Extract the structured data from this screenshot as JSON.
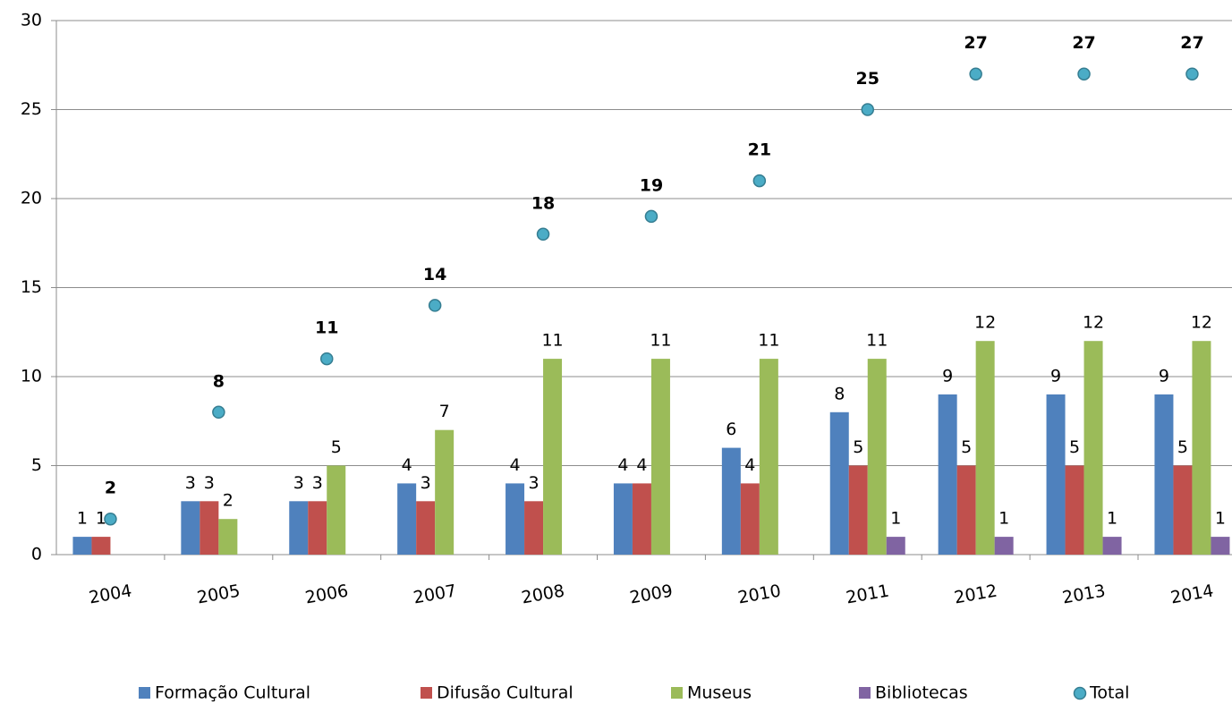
{
  "chart_data": {
    "type": "bar",
    "categories": [
      "2004",
      "2005",
      "2006",
      "2007",
      "2008",
      "2009",
      "2010",
      "2011",
      "2012",
      "2013",
      "2014"
    ],
    "series": [
      {
        "name": "Formação Cultural",
        "color": "#4f81bd",
        "values": [
          1,
          3,
          3,
          4,
          4,
          4,
          6,
          8,
          9,
          9,
          9
        ]
      },
      {
        "name": "Difusão Cultural",
        "color": "#c0504d",
        "values": [
          1,
          3,
          3,
          3,
          3,
          4,
          4,
          5,
          5,
          5,
          5
        ]
      },
      {
        "name": "Museus",
        "color": "#9bbb59",
        "values": [
          null,
          2,
          5,
          7,
          11,
          11,
          11,
          11,
          12,
          12,
          12
        ]
      },
      {
        "name": "Bibliotecas",
        "color": "#8064a2",
        "values": [
          null,
          null,
          null,
          null,
          null,
          null,
          null,
          1,
          1,
          1,
          1
        ]
      },
      {
        "name": "Total",
        "color": "#4bacc6",
        "type": "scatter",
        "values": [
          2,
          8,
          11,
          14,
          18,
          19,
          21,
          25,
          27,
          27,
          27
        ]
      }
    ],
    "ylim": [
      0,
      30
    ],
    "yticks": [
      0,
      5,
      10,
      15,
      20,
      25,
      30
    ],
    "grid": true,
    "legend": "bottom"
  }
}
